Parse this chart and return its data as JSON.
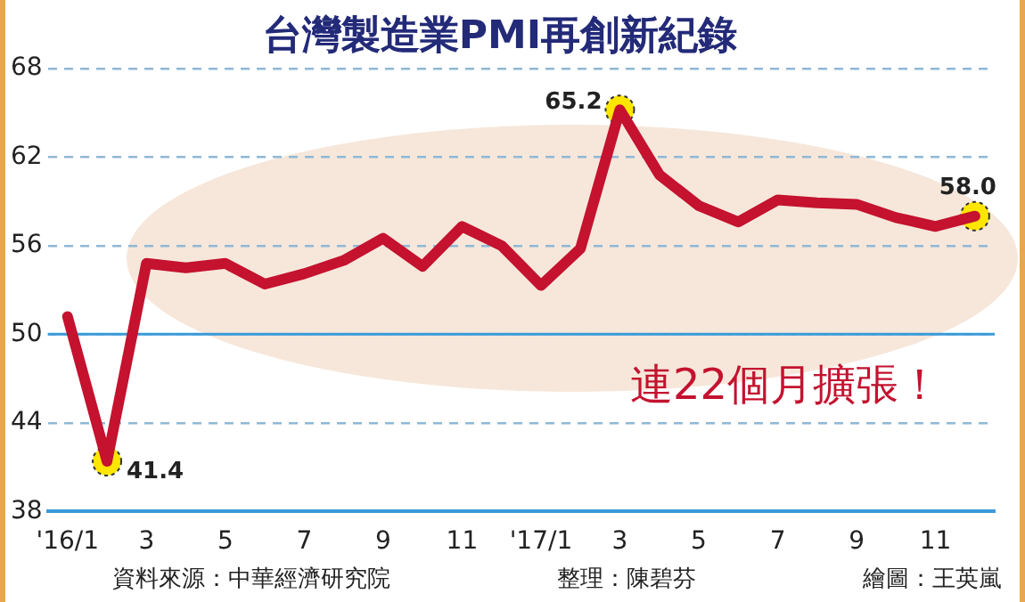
{
  "chart_data": {
    "type": "line",
    "title": "台灣製造業PMI再創新紀錄",
    "categories": [
      "'16/1",
      null,
      "3",
      null,
      "5",
      null,
      "7",
      null,
      "9",
      null,
      "11",
      null,
      "'17/1",
      null,
      "3",
      null,
      "5",
      null,
      "7",
      null,
      "9",
      null,
      "11",
      null
    ],
    "series": [
      {
        "color": "#c4122f",
        "values": [
          51.2,
          41.4,
          54.8,
          54.5,
          54.8,
          53.4,
          54.1,
          55.0,
          56.5,
          54.6,
          57.3,
          56.0,
          53.3,
          55.8,
          65.2,
          60.8,
          58.7,
          57.6,
          59.1,
          58.9,
          58.8,
          57.9,
          57.3,
          58.0
        ],
        "value_labels": [
          null,
          "41.4",
          null,
          null,
          null,
          null,
          null,
          null,
          null,
          null,
          null,
          null,
          null,
          null,
          "65.2",
          null,
          null,
          null,
          null,
          null,
          null,
          null,
          null,
          "58.0"
        ]
      }
    ],
    "ylim": [
      38,
      68
    ],
    "yticks": [
      38,
      44,
      50,
      56,
      62,
      68
    ],
    "grid": "y",
    "marker": "none",
    "line_style": "solid",
    "ref_lines": [
      {
        "axis": "y",
        "value": 50,
        "color": "#3a9ad9"
      }
    ],
    "annotations": [
      "連22個月擴張！",
      "資料來源：中華經濟研究院",
      "整理：陳碧芬",
      "繪圖：王英嵐"
    ]
  }
}
